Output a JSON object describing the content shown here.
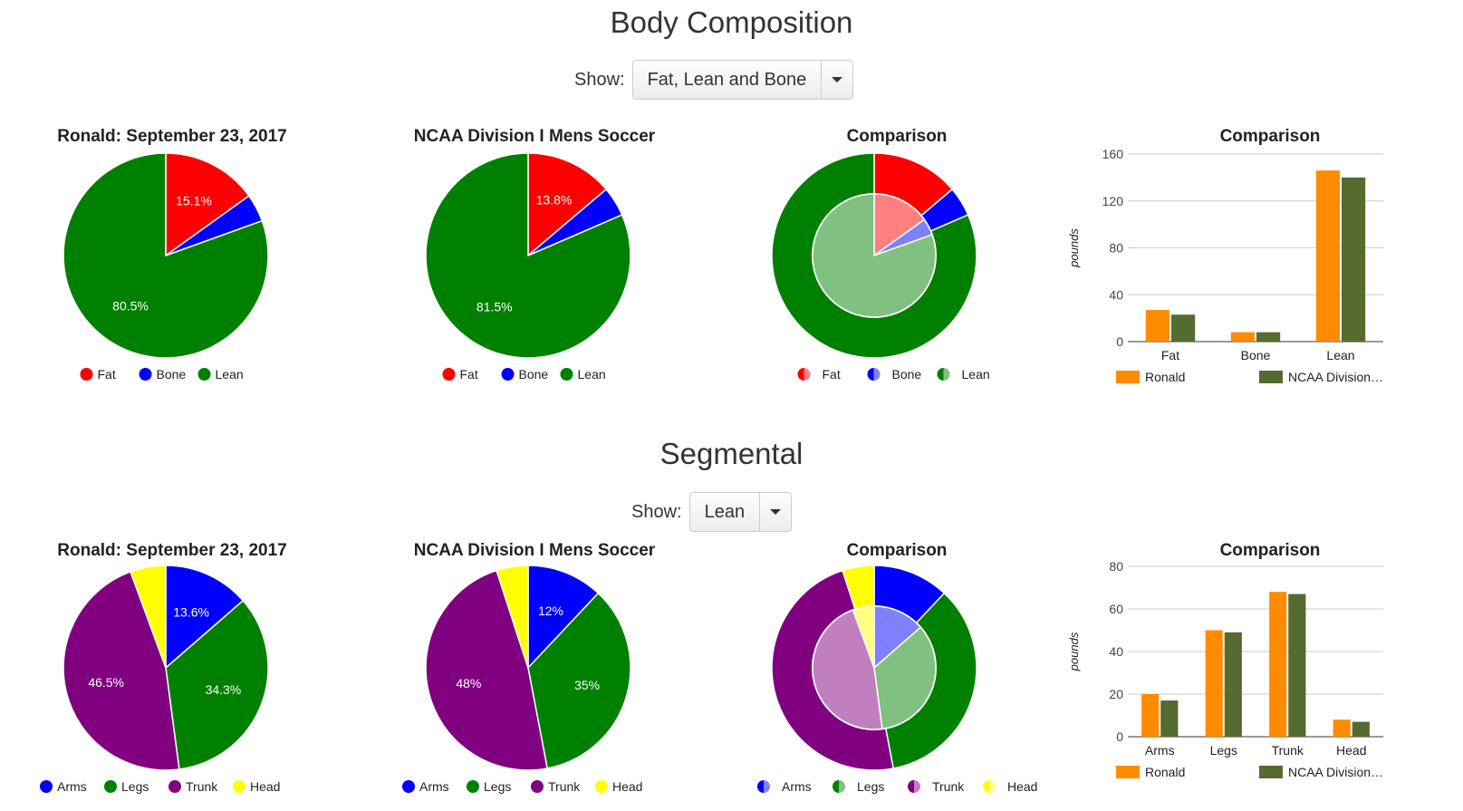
{
  "sections": [
    {
      "title": "Body Composition",
      "show_label": "Show:",
      "selected": "Fat, Lean and Bone"
    },
    {
      "title": "Segmental",
      "show_label": "Show:",
      "selected": "Lean"
    }
  ],
  "colors": {
    "fat": "#ff0000",
    "bone": "#0000ff",
    "lean": "#008000",
    "arms": "#0000ff",
    "legs": "#008000",
    "trunk": "purple",
    "head": "#ffff00",
    "ronald": "#ff8c00",
    "ncaa": "#556b2f"
  },
  "chart_data": [
    {
      "type": "pie",
      "title": "Ronald: September 23, 2017",
      "categories": [
        "Fat",
        "Bone",
        "Lean"
      ],
      "values": [
        15.1,
        4.4,
        80.5
      ],
      "labels": [
        "15.1%",
        "",
        "80.5%"
      ]
    },
    {
      "type": "pie",
      "title": "NCAA Division I Mens Soccer",
      "categories": [
        "Fat",
        "Bone",
        "Lean"
      ],
      "values": [
        13.8,
        4.7,
        81.5
      ],
      "labels": [
        "13.8%",
        "",
        "81.5%"
      ]
    },
    {
      "type": "pie",
      "title": "Comparison",
      "categories": [
        "Fat",
        "Bone",
        "Lean"
      ],
      "outer_values": [
        13.8,
        4.7,
        81.5
      ],
      "inner_values": [
        15.1,
        4.4,
        80.5
      ]
    },
    {
      "type": "bar",
      "title": "Comparison",
      "categories": [
        "Fat",
        "Bone",
        "Lean"
      ],
      "series": [
        {
          "name": "Ronald",
          "values": [
            27,
            8,
            146
          ]
        },
        {
          "name": "NCAA Division…",
          "values": [
            23,
            8,
            140
          ]
        }
      ],
      "ylabel": "pounds",
      "ylim": [
        0,
        160
      ],
      "yticks": [
        0,
        40,
        80,
        120,
        160
      ]
    },
    {
      "type": "pie",
      "title": "Ronald: September 23, 2017",
      "categories": [
        "Arms",
        "Legs",
        "Trunk",
        "Head"
      ],
      "values": [
        13.6,
        34.3,
        46.5,
        5.6
      ],
      "labels": [
        "13.6%",
        "34.3%",
        "46.5%",
        ""
      ]
    },
    {
      "type": "pie",
      "title": "NCAA Division I Mens Soccer",
      "categories": [
        "Arms",
        "Legs",
        "Trunk",
        "Head"
      ],
      "values": [
        12,
        35,
        48,
        5
      ],
      "labels": [
        "12%",
        "35%",
        "48%",
        ""
      ]
    },
    {
      "type": "pie",
      "title": "Comparison",
      "categories": [
        "Arms",
        "Legs",
        "Trunk",
        "Head"
      ],
      "outer_values": [
        12,
        35,
        48,
        5
      ],
      "inner_values": [
        13.6,
        34.3,
        46.5,
        5.6
      ]
    },
    {
      "type": "bar",
      "title": "Comparison",
      "categories": [
        "Arms",
        "Legs",
        "Trunk",
        "Head"
      ],
      "series": [
        {
          "name": "Ronald",
          "values": [
            20,
            50,
            68,
            8
          ]
        },
        {
          "name": "NCAA Division…",
          "values": [
            17,
            49,
            67,
            7
          ]
        }
      ],
      "ylabel": "pounds",
      "ylim": [
        0,
        80
      ],
      "yticks": [
        0,
        20,
        40,
        60,
        80
      ]
    }
  ]
}
